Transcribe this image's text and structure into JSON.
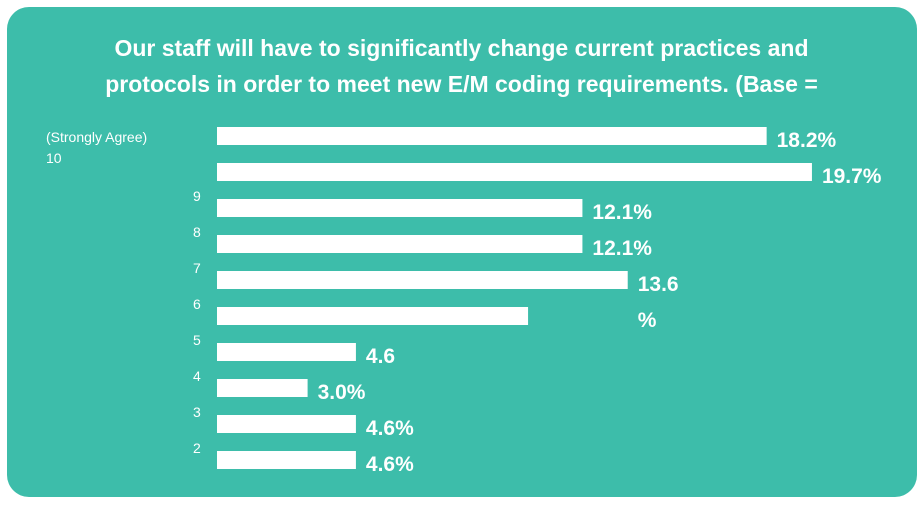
{
  "chart_data": {
    "type": "bar",
    "orientation": "horizontal",
    "title_lines": [
      "Our staff will have to significantly change current practices and",
      "protocols in order to meet new E/M coding requirements. (Base ="
    ],
    "categories": [
      "",
      "",
      "9",
      "8",
      "7",
      "6",
      "5",
      "4",
      "3",
      "2"
    ],
    "top_label_lines": [
      "(Strongly Agree)",
      "10"
    ],
    "values": [
      18.2,
      19.7,
      12.1,
      12.1,
      13.6,
      10.3,
      4.6,
      3.0,
      4.6,
      4.6
    ],
    "value_labels": [
      [
        "18.2%"
      ],
      [
        "19.7%"
      ],
      [
        "12.1%"
      ],
      [
        "12.1%"
      ],
      [
        "13.6",
        "%"
      ],
      [],
      [
        "4.6"
      ],
      [
        "3.0%"
      ],
      [
        "4.6%"
      ],
      [
        "4.6%"
      ]
    ],
    "xlim": [
      0,
      20
    ],
    "grid": false,
    "legend": "none",
    "colors": {
      "background": "#3dbdaa",
      "bar": "#ffffff",
      "text": "#ffffff"
    }
  }
}
